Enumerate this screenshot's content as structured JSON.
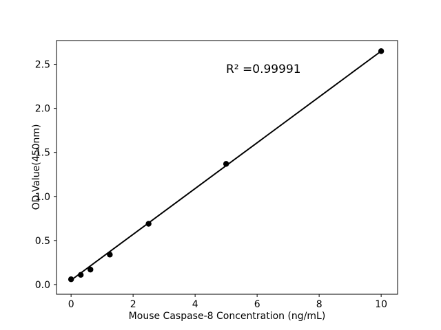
{
  "figure": {
    "background_color": "#ffffff"
  },
  "chart_data": {
    "type": "scatter",
    "title": "",
    "xlabel": "Mouse Caspase-8 Concentration (ng/mL)",
    "ylabel": "OD Value(450nm)",
    "annotation": "R² =0.99991",
    "r_squared": 0.99991,
    "points": [
      {
        "x": 0,
        "y": 0.06
      },
      {
        "x": 0.3125,
        "y": 0.11
      },
      {
        "x": 0.625,
        "y": 0.17
      },
      {
        "x": 1.25,
        "y": 0.34
      },
      {
        "x": 2.5,
        "y": 0.69
      },
      {
        "x": 5,
        "y": 1.37
      },
      {
        "x": 10,
        "y": 2.65
      }
    ],
    "fit_line": {
      "x_start": 0,
      "y_start": 0.05,
      "x_end": 10,
      "y_end": 2.65
    },
    "xticks": [
      {
        "value": 0,
        "label": "0"
      },
      {
        "value": 2,
        "label": "2"
      },
      {
        "value": 4,
        "label": "4"
      },
      {
        "value": 6,
        "label": "6"
      },
      {
        "value": 8,
        "label": "8"
      },
      {
        "value": 10,
        "label": "10"
      }
    ],
    "yticks": [
      {
        "value": 0.0,
        "label": "0.0"
      },
      {
        "value": 0.5,
        "label": "0.5"
      },
      {
        "value": 1.0,
        "label": "1.0"
      },
      {
        "value": 1.5,
        "label": "1.5"
      },
      {
        "value": 2.0,
        "label": "2.0"
      },
      {
        "value": 2.5,
        "label": "2.5"
      }
    ],
    "xlim": [
      -0.47,
      10.53
    ],
    "ylim": [
      -0.11,
      2.77
    ],
    "legend": null,
    "grid": false,
    "colors": {
      "line": "#000000",
      "marker": "#000000",
      "axis": "#000000",
      "text": "#000000",
      "background": "#ffffff"
    }
  }
}
